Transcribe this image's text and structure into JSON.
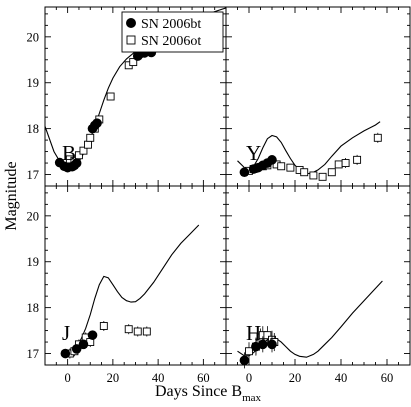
{
  "chart_data": {
    "type": "scatter",
    "layout": "2x2 panels, shared axes",
    "xlabel_main": "Days Since B",
    "xlabel_sub": "max",
    "ylabel": "Magnitude",
    "xlim": [
      -10,
      70
    ],
    "ylim": [
      20.65,
      16.75
    ],
    "y_inverted": true,
    "x_ticks": [
      0,
      20,
      40,
      60
    ],
    "y_ticks": [
      17,
      18,
      19,
      20
    ],
    "legend": {
      "placement": "top-right of B panel",
      "entries": [
        {
          "label": "SN 2006bt",
          "marker": "filled-circle"
        },
        {
          "label": "SN 2006ot",
          "marker": "open-square"
        }
      ]
    },
    "panels": [
      {
        "label": "B",
        "series": [
          {
            "name": "SN 2006bt",
            "x": [
              -3.5,
              -1.5,
              0,
              2,
              3,
              4,
              11,
              12,
              13,
              31,
              32,
              34,
              35,
              37,
              38
            ],
            "y": [
              17.26,
              17.18,
              17.15,
              17.17,
              17.2,
              17.25,
              18.0,
              18.07,
              18.12,
              19.58,
              19.63,
              19.65,
              19.69,
              19.66,
              19.75
            ]
          },
          {
            "name": "SN 2006ot",
            "x": [
              1,
              3,
              5,
              7,
              9,
              10,
              12,
              14,
              19,
              27,
              29,
              31,
              33,
              35,
              37,
              39,
              42,
              46,
              50,
              54,
              58,
              61
            ],
            "y": [
              17.33,
              17.3,
              17.42,
              17.52,
              17.65,
              17.8,
              18.0,
              18.2,
              18.7,
              19.38,
              19.45,
              19.6,
              19.85,
              19.7,
              19.78,
              19.92,
              20.05,
              20.08,
              20.1,
              20.05,
              20.15,
              20.15
            ]
          },
          {
            "name": "template",
            "x": [
              -10,
              -6,
              -3,
              -1,
              0,
              2,
              4,
              6,
              8,
              10,
              12,
              14,
              16,
              18,
              20,
              23,
              26,
              30,
              35,
              40,
              45,
              50,
              55,
              60,
              65,
              70
            ],
            "y": [
              18.05,
              17.5,
              17.25,
              17.17,
              17.15,
              17.16,
              17.23,
              17.36,
              17.55,
              17.78,
              18.05,
              18.33,
              18.62,
              18.88,
              19.1,
              19.35,
              19.52,
              19.68,
              19.84,
              19.97,
              20.1,
              20.22,
              20.34,
              20.45,
              20.55,
              20.63
            ]
          }
        ]
      },
      {
        "label": "Y",
        "series": [
          {
            "name": "SN 2006bt",
            "x": [
              -2,
              2,
              4,
              6,
              8,
              10
            ],
            "y": [
              17.05,
              17.12,
              17.15,
              17.2,
              17.25,
              17.32
            ]
          },
          {
            "name": "SN 2006ot",
            "x": [
              0,
              2,
              6,
              8,
              12,
              14,
              18,
              22,
              24,
              28,
              32,
              36,
              39,
              42,
              47,
              56
            ],
            "y": [
              17.08,
              17.12,
              17.18,
              17.2,
              17.22,
              17.18,
              17.15,
              17.1,
              17.05,
              16.98,
              16.95,
              17.05,
              17.22,
              17.25,
              17.32,
              17.8
            ]
          },
          {
            "name": "template",
            "x": [
              -5,
              -2,
              0,
              2,
              4,
              6,
              8,
              10,
              12,
              14,
              16,
              18,
              20,
              22,
              24,
              26,
              28,
              30,
              33,
              36,
              40,
              45,
              50,
              55,
              57
            ],
            "y": [
              17.3,
              17.15,
              17.1,
              17.18,
              17.35,
              17.58,
              17.78,
              17.85,
              17.82,
              17.7,
              17.52,
              17.35,
              17.2,
              17.1,
              17.05,
              17.02,
              17.05,
              17.1,
              17.22,
              17.4,
              17.62,
              17.8,
              17.95,
              18.08,
              18.15
            ]
          }
        ]
      },
      {
        "label": "J",
        "series": [
          {
            "name": "SN 2006bt",
            "x": [
              -1,
              4,
              7,
              11
            ],
            "y": [
              17.0,
              17.1,
              17.2,
              17.4
            ]
          },
          {
            "name": "SN 2006ot",
            "x": [
              1,
              3,
              5,
              8,
              10,
              16,
              27,
              31,
              35
            ],
            "y": [
              17.0,
              17.05,
              17.2,
              17.35,
              17.25,
              17.6,
              17.53,
              17.48,
              17.48
            ]
          },
          {
            "name": "template",
            "x": [
              -2,
              0,
              2,
              4,
              6,
              8,
              10,
              12,
              14,
              16,
              18,
              20,
              22,
              24,
              26,
              28,
              30,
              32,
              34,
              38,
              42,
              46,
              50,
              54,
              58
            ],
            "y": [
              17.05,
              17.0,
              17.05,
              17.15,
              17.32,
              17.55,
              17.85,
              18.2,
              18.5,
              18.68,
              18.65,
              18.5,
              18.35,
              18.22,
              18.15,
              18.12,
              18.13,
              18.2,
              18.3,
              18.55,
              18.85,
              19.15,
              19.4,
              19.6,
              19.8
            ]
          }
        ]
      },
      {
        "label": "H",
        "series": [
          {
            "name": "SN 2006bt",
            "x": [
              -2,
              3,
              6,
              10
            ],
            "y": [
              16.85,
              17.15,
              17.2,
              17.2
            ]
          },
          {
            "name": "SN 2006ot",
            "x": [
              0,
              3,
              5,
              6,
              8,
              10,
              11
            ],
            "y": [
              17.05,
              17.15,
              17.35,
              17.4,
              17.4,
              17.3,
              17.25
            ]
          },
          {
            "name": "template",
            "x": [
              -5,
              -2,
              0,
              2,
              4,
              6,
              8,
              10,
              12,
              14,
              16,
              18,
              20,
              22,
              25,
              28,
              30,
              33,
              36,
              40,
              45,
              50,
              55,
              58
            ],
            "y": [
              17.05,
              16.95,
              16.95,
              17.02,
              17.12,
              17.22,
              17.3,
              17.33,
              17.32,
              17.25,
              17.15,
              17.05,
              16.98,
              16.94,
              16.92,
              16.98,
              17.05,
              17.2,
              17.35,
              17.58,
              17.88,
              18.15,
              18.42,
              18.58
            ]
          }
        ]
      }
    ]
  }
}
